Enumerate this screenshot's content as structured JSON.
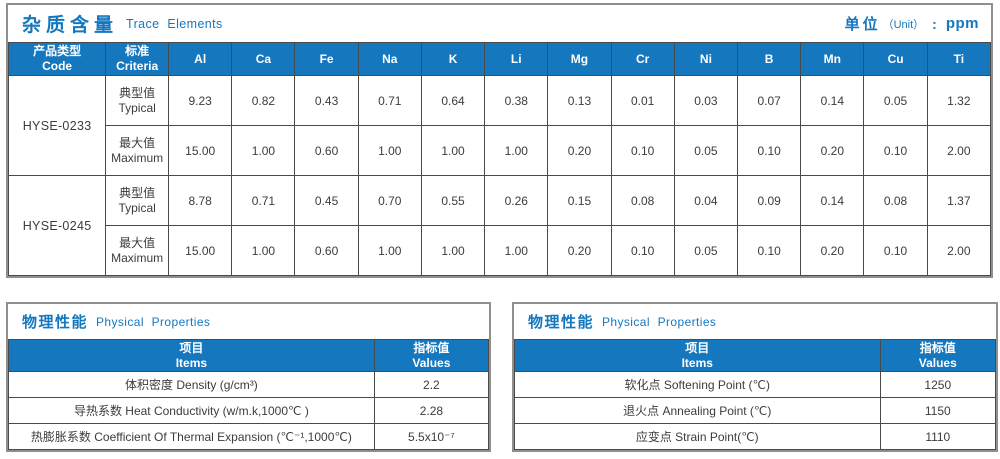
{
  "accent_color": "#1577be",
  "trace_table": {
    "title_zh": "杂质含量",
    "title_en": "Trace Elements",
    "unit_label": "单位",
    "unit_paren": "（Unit）",
    "unit_colon": ":",
    "unit_value": "ppm",
    "col_code_zh": "产品类型",
    "col_code_en": "Code",
    "col_criteria_zh": "标准",
    "col_criteria_en": "Criteria",
    "elements": [
      "Al",
      "Ca",
      "Fe",
      "Na",
      "K",
      "Li",
      "Mg",
      "Cr",
      "Ni",
      "B",
      "Mn",
      "Cu",
      "Ti"
    ],
    "products": [
      {
        "code": "HYSE-0233",
        "rows": [
          {
            "label_zh": "典型值",
            "label_en": "Typical",
            "values": [
              "9.23",
              "0.82",
              "0.43",
              "0.71",
              "0.64",
              "0.38",
              "0.13",
              "0.01",
              "0.03",
              "0.07",
              "0.14",
              "0.05",
              "1.32"
            ]
          },
          {
            "label_zh": "最大值",
            "label_en": "Maximum",
            "values": [
              "15.00",
              "1.00",
              "0.60",
              "1.00",
              "1.00",
              "1.00",
              "0.20",
              "0.10",
              "0.05",
              "0.10",
              "0.20",
              "0.10",
              "2.00"
            ]
          }
        ]
      },
      {
        "code": "HYSE-0245",
        "rows": [
          {
            "label_zh": "典型值",
            "label_en": "Typical",
            "values": [
              "8.78",
              "0.71",
              "0.45",
              "0.70",
              "0.55",
              "0.26",
              "0.15",
              "0.08",
              "0.04",
              "0.09",
              "0.14",
              "0.08",
              "1.37"
            ]
          },
          {
            "label_zh": "最大值",
            "label_en": "Maximum",
            "values": [
              "15.00",
              "1.00",
              "0.60",
              "1.00",
              "1.00",
              "1.00",
              "0.20",
              "0.10",
              "0.05",
              "0.10",
              "0.20",
              "0.10",
              "2.00"
            ]
          }
        ]
      }
    ]
  },
  "physical_left": {
    "title_zh": "物理性能",
    "title_en": "Physical Properties",
    "col_item_zh": "项目",
    "col_item_en": "Items",
    "col_value_zh": "指标值",
    "col_value_en": "Values",
    "rows": [
      {
        "item": "体积密度 Density (g/cm³)",
        "value": "2.2"
      },
      {
        "item": "导热系数 Heat Conductivity (w/m.k,1000℃ )",
        "value": "2.28"
      },
      {
        "item": "热膨胀系数 Coefficient Of Thermal Expansion (℃⁻¹,1000℃)",
        "value": "5.5x10⁻⁷"
      }
    ]
  },
  "physical_right": {
    "title_zh": "物理性能",
    "title_en": "Physical Properties",
    "col_item_zh": "项目",
    "col_item_en": "Items",
    "col_value_zh": "指标值",
    "col_value_en": "Values",
    "rows": [
      {
        "item": "软化点 Softening Point (℃)",
        "value": "1250"
      },
      {
        "item": "退火点 Annealing Point (℃)",
        "value": "1150"
      },
      {
        "item": "应变点 Strain Point(℃)",
        "value": "1110"
      }
    ]
  }
}
